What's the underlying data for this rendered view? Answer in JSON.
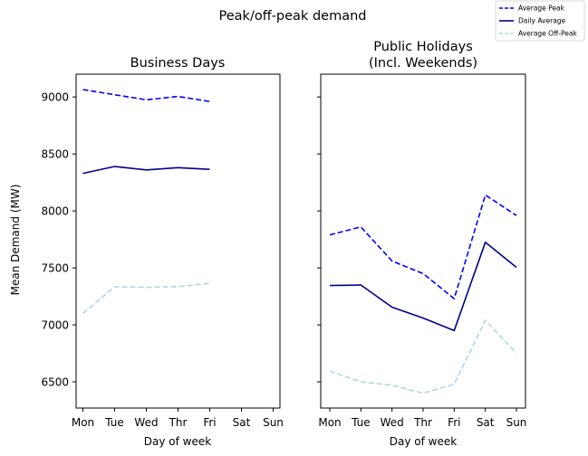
{
  "suptitle": "Peak/off-peak demand",
  "legend": {
    "placement": "top-right",
    "entries": [
      "Average Peak",
      "Daily Average",
      "Average Off-Peak"
    ]
  },
  "colors": {
    "peak": "#0000ff",
    "average": "#00008b",
    "offpeak": "#add8e6"
  },
  "chart_data": [
    {
      "type": "line",
      "title": "Business Days",
      "xlabel": "Day of week",
      "ylabel": "Mean Demand (MW)",
      "categories": [
        "Mon",
        "Tue",
        "Wed",
        "Thr",
        "Fri",
        "Sat",
        "Sun"
      ],
      "ylim": [
        6270,
        9200
      ],
      "yticks": [
        6500,
        7000,
        7500,
        8000,
        8500,
        9000
      ],
      "grid": false,
      "series": [
        {
          "name": "Average Peak",
          "style": "dashed",
          "values": [
            9065,
            9020,
            8975,
            9005,
            8960,
            null,
            null
          ]
        },
        {
          "name": "Daily Average",
          "style": "solid",
          "values": [
            8330,
            8390,
            8360,
            8380,
            8365,
            null,
            null
          ]
        },
        {
          "name": "Average Off-Peak",
          "style": "dashed",
          "values": [
            7100,
            7335,
            7330,
            7335,
            7365,
            null,
            null
          ]
        }
      ]
    },
    {
      "type": "line",
      "title_lines": [
        "Public Holidays",
        "(Incl. Weekends)"
      ],
      "xlabel": "Day of week",
      "ylabel": "",
      "categories": [
        "Mon",
        "Tue",
        "Wed",
        "Thr",
        "Fri",
        "Sat",
        "Sun"
      ],
      "ylim": [
        6270,
        9200
      ],
      "sharey": true,
      "grid": false,
      "series": [
        {
          "name": "Average Peak",
          "style": "dashed",
          "values": [
            7790,
            7860,
            7560,
            7450,
            7230,
            8140,
            7960
          ]
        },
        {
          "name": "Daily Average",
          "style": "solid",
          "values": [
            7345,
            7350,
            7155,
            7060,
            6950,
            7725,
            7505
          ]
        },
        {
          "name": "Average Off-Peak",
          "style": "dashed",
          "values": [
            6595,
            6500,
            6470,
            6400,
            6480,
            7040,
            6750
          ]
        }
      ]
    }
  ]
}
